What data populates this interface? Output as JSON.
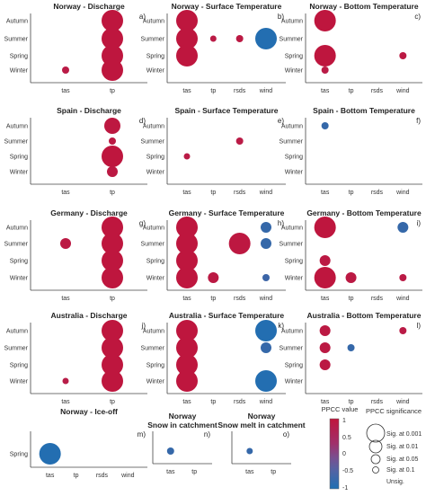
{
  "figure": {
    "colorbar": {
      "title": "PPCC value",
      "ticks": [
        "1",
        "0.5",
        "0",
        "-0.5",
        "-1"
      ],
      "colors": {
        "positive": "#c0143c",
        "mid": "#8f4a86",
        "negative": "#1f6fb2"
      }
    },
    "significance_legend": {
      "title": "PPCC significance",
      "entries": [
        "Sig. at 0.001",
        "Sig. at 0.01",
        "Sig. at 0.05",
        "Sig. at 0.1",
        "Unsig."
      ]
    }
  },
  "chart_data": [
    {
      "type": "scatter",
      "title": "Norway - Discharge",
      "panel_label": "a)",
      "x_categories": [
        "tas",
        "tp"
      ],
      "y_categories": [
        "Autumn",
        "Summer",
        "Spring",
        "Winter"
      ],
      "points": [
        {
          "x": "tp",
          "y": "Autumn",
          "value": 0.95,
          "sig": "0.001"
        },
        {
          "x": "tp",
          "y": "Summer",
          "value": 0.95,
          "sig": "0.001"
        },
        {
          "x": "tp",
          "y": "Spring",
          "value": 0.95,
          "sig": "0.001"
        },
        {
          "x": "tp",
          "y": "Winter",
          "value": 0.95,
          "sig": "0.001"
        },
        {
          "x": "tas",
          "y": "Winter",
          "value": 0.8,
          "sig": "0.1"
        }
      ]
    },
    {
      "type": "scatter",
      "title": "Norway - Surface Temperature",
      "panel_label": "b)",
      "x_categories": [
        "tas",
        "tp",
        "rsds",
        "wind"
      ],
      "y_categories": [
        "Autumn",
        "Summer",
        "Spring",
        "Winter"
      ],
      "points": [
        {
          "x": "tas",
          "y": "Autumn",
          "value": 0.95,
          "sig": "0.001"
        },
        {
          "x": "tas",
          "y": "Summer",
          "value": 0.95,
          "sig": "0.001"
        },
        {
          "x": "tas",
          "y": "Spring",
          "value": 0.95,
          "sig": "0.001"
        },
        {
          "x": "tp",
          "y": "Summer",
          "value": 0.8,
          "sig": "unsig"
        },
        {
          "x": "rsds",
          "y": "Summer",
          "value": 0.85,
          "sig": "0.1"
        },
        {
          "x": "wind",
          "y": "Summer",
          "value": -0.95,
          "sig": "0.001"
        }
      ]
    },
    {
      "type": "scatter",
      "title": "Norway - Bottom Temperature",
      "panel_label": "c)",
      "x_categories": [
        "tas",
        "tp",
        "rsds",
        "wind"
      ],
      "y_categories": [
        "Autumn",
        "Summer",
        "Spring",
        "Winter"
      ],
      "points": [
        {
          "x": "tas",
          "y": "Autumn",
          "value": 0.95,
          "sig": "0.001"
        },
        {
          "x": "tas",
          "y": "Spring",
          "value": 0.95,
          "sig": "0.001"
        },
        {
          "x": "tas",
          "y": "Winter",
          "value": 0.8,
          "sig": "0.1"
        },
        {
          "x": "wind",
          "y": "Spring",
          "value": 0.85,
          "sig": "0.1"
        }
      ]
    },
    {
      "type": "scatter",
      "title": "Spain - Discharge",
      "panel_label": "d)",
      "x_categories": [
        "tas",
        "tp"
      ],
      "y_categories": [
        "Autumn",
        "Summer",
        "Spring",
        "Winter"
      ],
      "points": [
        {
          "x": "tp",
          "y": "Autumn",
          "value": 0.9,
          "sig": "0.01"
        },
        {
          "x": "tp",
          "y": "Summer",
          "value": 0.85,
          "sig": "0.1"
        },
        {
          "x": "tp",
          "y": "Spring",
          "value": 0.95,
          "sig": "0.001"
        },
        {
          "x": "tp",
          "y": "Winter",
          "value": 0.85,
          "sig": "0.05"
        }
      ]
    },
    {
      "type": "scatter",
      "title": "Spain - Surface Temperature",
      "panel_label": "e)",
      "x_categories": [
        "tas",
        "tp",
        "rsds",
        "wind"
      ],
      "y_categories": [
        "Autumn",
        "Summer",
        "Spring",
        "Winter"
      ],
      "points": [
        {
          "x": "rsds",
          "y": "Summer",
          "value": 0.8,
          "sig": "0.1"
        },
        {
          "x": "tas",
          "y": "Spring",
          "value": 0.8,
          "sig": "unsig"
        }
      ]
    },
    {
      "type": "scatter",
      "title": "Spain - Bottom Temperature",
      "panel_label": "f)",
      "x_categories": [
        "tas",
        "tp",
        "rsds",
        "wind"
      ],
      "y_categories": [
        "Autumn",
        "Summer",
        "Spring",
        "Winter"
      ],
      "points": [
        {
          "x": "tas",
          "y": "Autumn",
          "value": -0.7,
          "sig": "0.1"
        }
      ]
    },
    {
      "type": "scatter",
      "title": "Germany - Discharge",
      "panel_label": "g)",
      "x_categories": [
        "tas",
        "tp"
      ],
      "y_categories": [
        "Autumn",
        "Summer",
        "Spring",
        "Winter"
      ],
      "points": [
        {
          "x": "tp",
          "y": "Autumn",
          "value": 0.95,
          "sig": "0.001"
        },
        {
          "x": "tp",
          "y": "Summer",
          "value": 0.95,
          "sig": "0.001"
        },
        {
          "x": "tp",
          "y": "Spring",
          "value": 0.95,
          "sig": "0.001"
        },
        {
          "x": "tp",
          "y": "Winter",
          "value": 0.95,
          "sig": "0.001"
        },
        {
          "x": "tas",
          "y": "Summer",
          "value": 0.85,
          "sig": "0.05"
        }
      ]
    },
    {
      "type": "scatter",
      "title": "Germany - Surface Temperature",
      "panel_label": "h)",
      "x_categories": [
        "tas",
        "tp",
        "rsds",
        "wind"
      ],
      "y_categories": [
        "Autumn",
        "Summer",
        "Spring",
        "Winter"
      ],
      "points": [
        {
          "x": "tas",
          "y": "Autumn",
          "value": 0.95,
          "sig": "0.001"
        },
        {
          "x": "tas",
          "y": "Summer",
          "value": 0.95,
          "sig": "0.001"
        },
        {
          "x": "tas",
          "y": "Spring",
          "value": 0.95,
          "sig": "0.001"
        },
        {
          "x": "tas",
          "y": "Winter",
          "value": 0.95,
          "sig": "0.001"
        },
        {
          "x": "tp",
          "y": "Winter",
          "value": 0.85,
          "sig": "0.05"
        },
        {
          "x": "rsds",
          "y": "Summer",
          "value": 0.9,
          "sig": "0.001"
        },
        {
          "x": "wind",
          "y": "Autumn",
          "value": -0.7,
          "sig": "0.05"
        },
        {
          "x": "wind",
          "y": "Summer",
          "value": -0.7,
          "sig": "0.05"
        },
        {
          "x": "wind",
          "y": "Winter",
          "value": -0.6,
          "sig": "0.1"
        }
      ]
    },
    {
      "type": "scatter",
      "title": "Germany - Bottom Temperature",
      "panel_label": "i)",
      "x_categories": [
        "tas",
        "tp",
        "rsds",
        "wind"
      ],
      "y_categories": [
        "Autumn",
        "Summer",
        "Spring",
        "Winter"
      ],
      "points": [
        {
          "x": "tas",
          "y": "Autumn",
          "value": 0.95,
          "sig": "0.001"
        },
        {
          "x": "tas",
          "y": "Spring",
          "value": 0.85,
          "sig": "0.05"
        },
        {
          "x": "tas",
          "y": "Winter",
          "value": 0.95,
          "sig": "0.001"
        },
        {
          "x": "tp",
          "y": "Winter",
          "value": 0.85,
          "sig": "0.05"
        },
        {
          "x": "wind",
          "y": "Autumn",
          "value": -0.7,
          "sig": "0.05"
        },
        {
          "x": "wind",
          "y": "Winter",
          "value": 0.8,
          "sig": "0.1"
        }
      ]
    },
    {
      "type": "scatter",
      "title": "Australia - Discharge",
      "panel_label": "j)",
      "x_categories": [
        "tas",
        "tp"
      ],
      "y_categories": [
        "Autumn",
        "Summer",
        "Spring",
        "Winter"
      ],
      "points": [
        {
          "x": "tp",
          "y": "Autumn",
          "value": 0.95,
          "sig": "0.001"
        },
        {
          "x": "tp",
          "y": "Summer",
          "value": 0.95,
          "sig": "0.001"
        },
        {
          "x": "tp",
          "y": "Spring",
          "value": 0.95,
          "sig": "0.001"
        },
        {
          "x": "tp",
          "y": "Winter",
          "value": 0.95,
          "sig": "0.001"
        },
        {
          "x": "tas",
          "y": "Winter",
          "value": 0.75,
          "sig": "unsig"
        }
      ]
    },
    {
      "type": "scatter",
      "title": "Australia - Surface Temperature",
      "panel_label": "k)",
      "x_categories": [
        "tas",
        "tp",
        "rsds",
        "wind"
      ],
      "y_categories": [
        "Autumn",
        "Summer",
        "Spring",
        "Winter"
      ],
      "points": [
        {
          "x": "tas",
          "y": "Autumn",
          "value": 0.95,
          "sig": "0.001"
        },
        {
          "x": "tas",
          "y": "Summer",
          "value": 0.95,
          "sig": "0.001"
        },
        {
          "x": "tas",
          "y": "Spring",
          "value": 0.95,
          "sig": "0.001"
        },
        {
          "x": "tas",
          "y": "Winter",
          "value": 0.95,
          "sig": "0.001"
        },
        {
          "x": "wind",
          "y": "Autumn",
          "value": -0.95,
          "sig": "0.001"
        },
        {
          "x": "wind",
          "y": "Summer",
          "value": -0.7,
          "sig": "0.05"
        },
        {
          "x": "wind",
          "y": "Winter",
          "value": -0.95,
          "sig": "0.001"
        }
      ]
    },
    {
      "type": "scatter",
      "title": "Australia - Bottom Temperature",
      "panel_label": "l)",
      "x_categories": [
        "tas",
        "tp",
        "rsds",
        "wind"
      ],
      "y_categories": [
        "Autumn",
        "Summer",
        "Spring",
        "Winter"
      ],
      "points": [
        {
          "x": "tas",
          "y": "Autumn",
          "value": 0.85,
          "sig": "0.05"
        },
        {
          "x": "tas",
          "y": "Summer",
          "value": 0.85,
          "sig": "0.05"
        },
        {
          "x": "tas",
          "y": "Spring",
          "value": 0.85,
          "sig": "0.05"
        },
        {
          "x": "tp",
          "y": "Summer",
          "value": -0.7,
          "sig": "0.1"
        },
        {
          "x": "wind",
          "y": "Autumn",
          "value": 0.8,
          "sig": "0.1"
        }
      ]
    },
    {
      "type": "scatter",
      "title": "Norway - Ice-off",
      "panel_label": "m)",
      "x_categories": [
        "tas",
        "tp",
        "rsds",
        "wind"
      ],
      "y_categories": [
        "Spring"
      ],
      "points": [
        {
          "x": "tas",
          "y": "Spring",
          "value": -0.95,
          "sig": "0.001"
        }
      ]
    },
    {
      "type": "scatter",
      "title": "Norway\nSnow in catchment",
      "panel_label": "n)",
      "x_categories": [
        "tas",
        "tp"
      ],
      "y_categories": [
        "Spring"
      ],
      "points": [
        {
          "x": "tas",
          "y": "Spring",
          "value": -0.7,
          "sig": "0.1"
        }
      ]
    },
    {
      "type": "scatter",
      "title": "Norway\nSnow melt in catchment",
      "panel_label": "o)",
      "x_categories": [
        "tas",
        "tp"
      ],
      "y_categories": [
        "Spring"
      ],
      "points": [
        {
          "x": "tas",
          "y": "Spring",
          "value": -0.7,
          "sig": "unsig"
        }
      ]
    }
  ]
}
